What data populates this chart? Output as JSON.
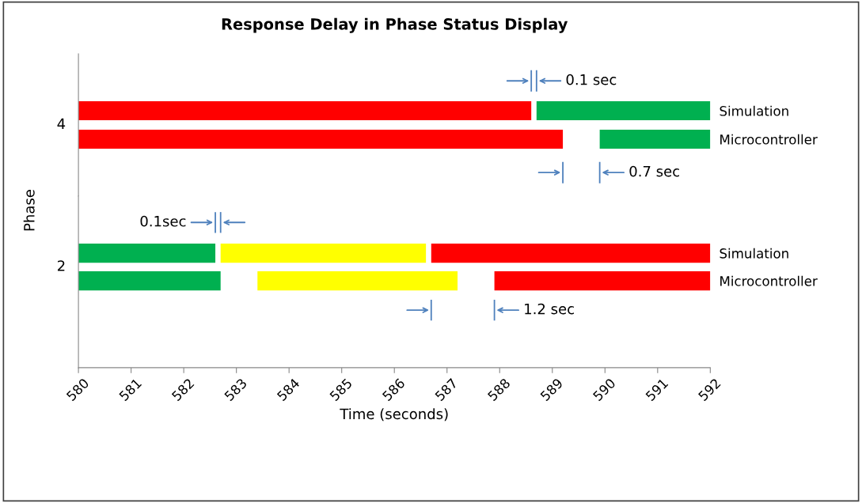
{
  "chart_data": [
    {
      "type": "bar",
      "orientation": "horizontal",
      "title": "Response Delay in Phase Status Display",
      "ylabel": "Phase",
      "categories": [
        "Simulation",
        "Microcontroller"
      ],
      "series": [
        {
          "color": "#ff0000",
          "base": [
            580,
            580
          ],
          "values": [
            8.6,
            9.2
          ]
        },
        {
          "color": "#00b050",
          "base": [
            588.7,
            589.9
          ],
          "values": [
            3.3,
            2.1
          ]
        }
      ],
      "xlim": [
        580,
        592
      ],
      "xticks": [
        580,
        581,
        582,
        583,
        584,
        585,
        586,
        587,
        588,
        589,
        590,
        591,
        592
      ],
      "tick_labels": "y",
      "annotations": [
        "4",
        "0.1 sec",
        "0.7 sec"
      ]
    },
    {
      "type": "bar",
      "orientation": "horizontal",
      "xlabel": "Time (seconds)",
      "categories": [
        "Simulation",
        "Microcontroller"
      ],
      "series": [
        {
          "color": "#00b050",
          "base": [
            580,
            580
          ],
          "values": [
            2.6,
            2.7
          ]
        },
        {
          "color": "#ffff00",
          "base": [
            582.7,
            583.4
          ],
          "values": [
            3.9,
            3.8
          ]
        },
        {
          "color": "#ff0000",
          "base": [
            586.7,
            587.9
          ],
          "values": [
            5.3,
            4.1
          ]
        }
      ],
      "xlim": [
        580,
        592
      ],
      "xticks": [
        580,
        581,
        582,
        583,
        584,
        585,
        586,
        587,
        588,
        589,
        590,
        591,
        592
      ],
      "annotations": [
        "2",
        "0.1sec",
        "1.2 sec"
      ]
    }
  ]
}
